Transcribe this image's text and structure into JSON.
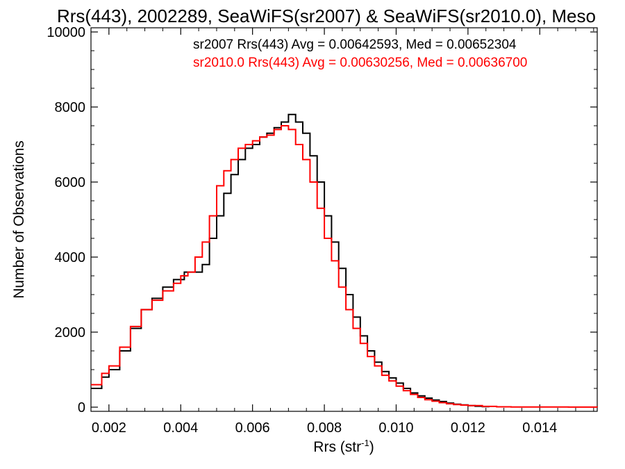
{
  "chart_data": {
    "type": "line",
    "title": "Rrs(443), 2002289, SeaWiFS(sr2007) & SeaWiFS(sr2010.0), Meso",
    "xlabel": "Rrs (str",
    "xlabel_sup": "-1",
    "xlabel_close": ")",
    "ylabel": "Number of Observations",
    "xlim": [
      0.0015,
      0.0156
    ],
    "ylim": [
      0,
      10000
    ],
    "xticks": [
      {
        "value": 0.002,
        "label": "0.002"
      },
      {
        "value": 0.004,
        "label": "0.004"
      },
      {
        "value": 0.006,
        "label": "0.006"
      },
      {
        "value": 0.008,
        "label": "0.008"
      },
      {
        "value": 0.01,
        "label": "0.010"
      },
      {
        "value": 0.012,
        "label": "0.012"
      },
      {
        "value": 0.014,
        "label": "0.014"
      }
    ],
    "yticks": [
      {
        "value": 0,
        "label": "0"
      },
      {
        "value": 2000,
        "label": "2000"
      },
      {
        "value": 4000,
        "label": "4000"
      },
      {
        "value": 6000,
        "label": "6000"
      },
      {
        "value": 8000,
        "label": "8000"
      },
      {
        "value": 10000,
        "label": "10000"
      }
    ],
    "grid": false,
    "legend_placement": "top-right",
    "series": [
      {
        "name": "sr2007",
        "color": "#000000",
        "legend_text": "sr2007 Rrs(443) Avg = 0.00642593, Med = 0.00652304",
        "points": [
          [
            0.0015,
            500
          ],
          [
            0.0018,
            800
          ],
          [
            0.002,
            1000
          ],
          [
            0.0023,
            1500
          ],
          [
            0.0026,
            2100
          ],
          [
            0.0029,
            2600
          ],
          [
            0.0032,
            2900
          ],
          [
            0.0035,
            3200
          ],
          [
            0.0038,
            3400
          ],
          [
            0.0041,
            3600
          ],
          [
            0.0044,
            3600
          ],
          [
            0.0046,
            3800
          ],
          [
            0.0048,
            4500
          ],
          [
            0.005,
            5100
          ],
          [
            0.0052,
            5700
          ],
          [
            0.0054,
            6200
          ],
          [
            0.0056,
            6600
          ],
          [
            0.0058,
            6900
          ],
          [
            0.006,
            7000
          ],
          [
            0.0062,
            7200
          ],
          [
            0.0064,
            7300
          ],
          [
            0.0066,
            7450
          ],
          [
            0.0068,
            7600
          ],
          [
            0.007,
            7800
          ],
          [
            0.0072,
            7600
          ],
          [
            0.0074,
            7300
          ],
          [
            0.0076,
            6700
          ],
          [
            0.0078,
            6000
          ],
          [
            0.008,
            5100
          ],
          [
            0.0082,
            4400
          ],
          [
            0.0084,
            3700
          ],
          [
            0.0086,
            3000
          ],
          [
            0.0088,
            2400
          ],
          [
            0.009,
            1900
          ],
          [
            0.0092,
            1500
          ],
          [
            0.0094,
            1200
          ],
          [
            0.0096,
            950
          ],
          [
            0.0098,
            780
          ],
          [
            0.01,
            640
          ],
          [
            0.0102,
            500
          ],
          [
            0.0104,
            380
          ],
          [
            0.0106,
            300
          ],
          [
            0.0108,
            240
          ],
          [
            0.011,
            190
          ],
          [
            0.0112,
            150
          ],
          [
            0.0114,
            110
          ],
          [
            0.0116,
            80
          ],
          [
            0.0118,
            60
          ],
          [
            0.012,
            40
          ],
          [
            0.0122,
            25
          ],
          [
            0.0124,
            15
          ],
          [
            0.0126,
            8
          ]
        ]
      },
      {
        "name": "sr2010.0",
        "color": "#ff0000",
        "legend_text": "sr2010.0 Rrs(443) Avg = 0.00630256, Med = 0.00636700",
        "points": [
          [
            0.0015,
            600
          ],
          [
            0.0018,
            900
          ],
          [
            0.002,
            1100
          ],
          [
            0.0023,
            1600
          ],
          [
            0.0026,
            2150
          ],
          [
            0.0029,
            2600
          ],
          [
            0.0032,
            2850
          ],
          [
            0.0035,
            3100
          ],
          [
            0.0038,
            3300
          ],
          [
            0.004,
            3500
          ],
          [
            0.0042,
            3600
          ],
          [
            0.0044,
            4000
          ],
          [
            0.0046,
            4400
          ],
          [
            0.0048,
            5100
          ],
          [
            0.005,
            5900
          ],
          [
            0.0052,
            6300
          ],
          [
            0.0054,
            6600
          ],
          [
            0.0056,
            6900
          ],
          [
            0.0058,
            7000
          ],
          [
            0.006,
            7100
          ],
          [
            0.0062,
            7200
          ],
          [
            0.0064,
            7250
          ],
          [
            0.0066,
            7400
          ],
          [
            0.0068,
            7500
          ],
          [
            0.007,
            7400
          ],
          [
            0.0072,
            7000
          ],
          [
            0.0074,
            6600
          ],
          [
            0.0076,
            6000
          ],
          [
            0.0078,
            5300
          ],
          [
            0.008,
            4500
          ],
          [
            0.0082,
            3900
          ],
          [
            0.0084,
            3200
          ],
          [
            0.0086,
            2600
          ],
          [
            0.0088,
            2100
          ],
          [
            0.009,
            1700
          ],
          [
            0.0092,
            1350
          ],
          [
            0.0094,
            1100
          ],
          [
            0.0096,
            850
          ],
          [
            0.0098,
            700
          ],
          [
            0.01,
            560
          ],
          [
            0.0102,
            440
          ],
          [
            0.0104,
            340
          ],
          [
            0.0106,
            260
          ],
          [
            0.0108,
            200
          ],
          [
            0.011,
            160
          ],
          [
            0.0112,
            120
          ],
          [
            0.0114,
            90
          ],
          [
            0.0116,
            70
          ],
          [
            0.0118,
            55
          ],
          [
            0.012,
            40
          ],
          [
            0.0124,
            20
          ],
          [
            0.0128,
            10
          ],
          [
            0.0132,
            5
          ],
          [
            0.014,
            3
          ],
          [
            0.0148,
            1
          ],
          [
            0.0156,
            0
          ]
        ]
      }
    ]
  }
}
